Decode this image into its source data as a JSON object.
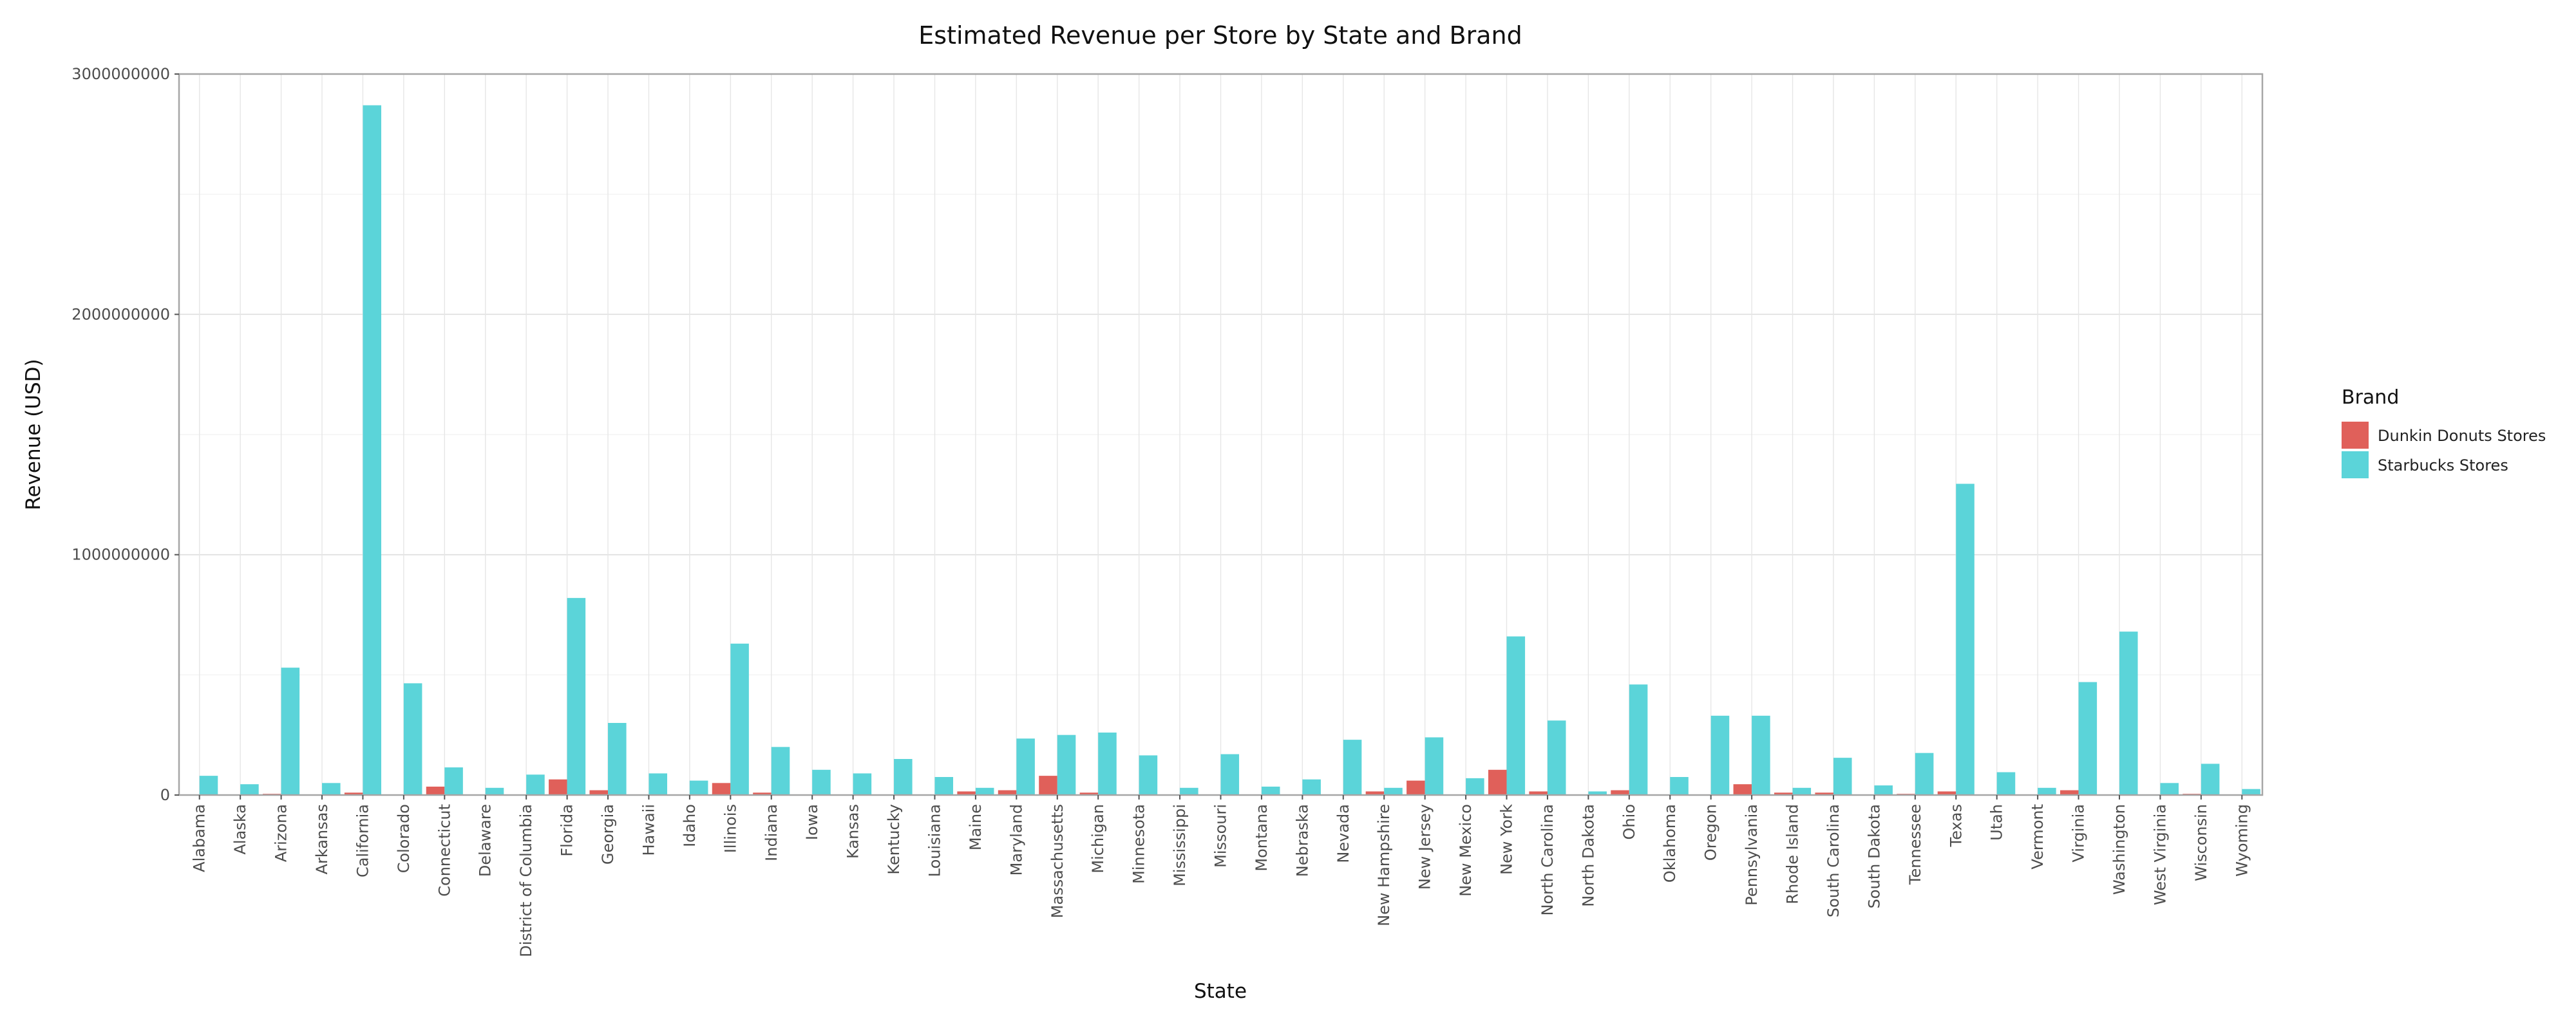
{
  "chart_data": {
    "type": "bar",
    "title": "Estimated Revenue per Store by State and Brand",
    "xlabel": "State",
    "ylabel": "Revenue (USD)",
    "ylim": [
      0,
      3000000000
    ],
    "yticks": [
      "0",
      "1000000000",
      "2000000000",
      "3000000000"
    ],
    "grid": true,
    "legend": {
      "title": "Brand",
      "placement": "right"
    },
    "categories": [
      "Alabama",
      "Alaska",
      "Arizona",
      "Arkansas",
      "California",
      "Colorado",
      "Connecticut",
      "Delaware",
      "District of Columbia",
      "Florida",
      "Georgia",
      "Hawaii",
      "Idaho",
      "Illinois",
      "Indiana",
      "Iowa",
      "Kansas",
      "Kentucky",
      "Louisiana",
      "Maine",
      "Maryland",
      "Massachusetts",
      "Michigan",
      "Minnesota",
      "Mississippi",
      "Missouri",
      "Montana",
      "Nebraska",
      "Nevada",
      "New Hampshire",
      "New Jersey",
      "New Mexico",
      "New York",
      "North Carolina",
      "North Dakota",
      "Ohio",
      "Oklahoma",
      "Oregon",
      "Pennsylvania",
      "Rhode Island",
      "South Carolina",
      "South Dakota",
      "Tennessee",
      "Texas",
      "Utah",
      "Vermont",
      "Virginia",
      "Washington",
      "West Virginia",
      "Wisconsin",
      "Wyoming"
    ],
    "series": [
      {
        "name": "Dunkin Donuts Stores",
        "color": "#e0605a",
        "values": [
          0,
          0,
          5000000,
          0,
          10000000,
          0,
          35000000,
          0,
          0,
          65000000,
          20000000,
          0,
          0,
          50000000,
          10000000,
          0,
          0,
          0,
          0,
          15000000,
          20000000,
          80000000,
          10000000,
          0,
          0,
          0,
          0,
          0,
          0,
          15000000,
          60000000,
          0,
          105000000,
          15000000,
          0,
          20000000,
          0,
          0,
          45000000,
          10000000,
          10000000,
          0,
          5000000,
          15000000,
          0,
          0,
          20000000,
          0,
          0,
          5000000,
          0
        ]
      },
      {
        "name": "Starbucks Stores",
        "color": "#5bd4d9",
        "values": [
          80000000,
          45000000,
          530000000,
          50000000,
          2870000000,
          465000000,
          115000000,
          30000000,
          85000000,
          820000000,
          300000000,
          90000000,
          60000000,
          630000000,
          200000000,
          105000000,
          90000000,
          150000000,
          75000000,
          30000000,
          235000000,
          250000000,
          260000000,
          165000000,
          30000000,
          170000000,
          35000000,
          65000000,
          230000000,
          30000000,
          240000000,
          70000000,
          660000000,
          310000000,
          15000000,
          460000000,
          75000000,
          330000000,
          330000000,
          30000000,
          155000000,
          40000000,
          175000000,
          1295000000,
          95000000,
          30000000,
          470000000,
          680000000,
          50000000,
          130000000,
          25000000
        ]
      }
    ]
  }
}
